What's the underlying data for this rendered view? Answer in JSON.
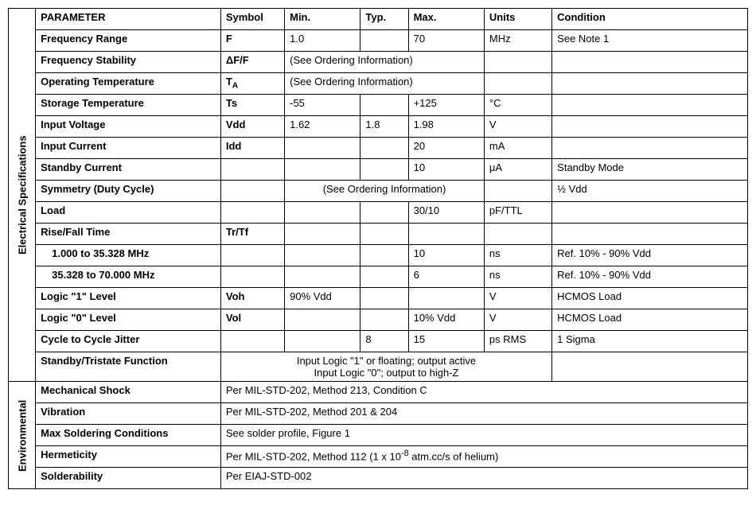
{
  "headers": {
    "parameter": "PARAMETER",
    "symbol": "Symbol",
    "min": "Min.",
    "typ": "Typ.",
    "max": "Max.",
    "units": "Units",
    "condition": "Condition"
  },
  "sections": {
    "elec": "Electrical Specifications",
    "env": "Environmental"
  },
  "rows": {
    "freq_range": {
      "p": "Frequency Range",
      "s": "F",
      "min": "1.0",
      "typ": "",
      "max": "70",
      "u": "MHz",
      "c": "See Note 1"
    },
    "freq_stab": {
      "p": "Frequency Stability",
      "s": "ΔF/F",
      "span": "(See Ordering Information)",
      "u": "",
      "c": ""
    },
    "op_temp": {
      "p": "Operating Temperature",
      "s_html": "T<sub>A</sub>",
      "span": "(See Ordering Information)",
      "u": "",
      "c": ""
    },
    "stor_temp": {
      "p": "Storage Temperature",
      "s": "Ts",
      "min": "-55",
      "typ": "",
      "max": "+125",
      "u": "°C",
      "c": ""
    },
    "in_volt": {
      "p": "Input Voltage",
      "s": "Vdd",
      "min": "1.62",
      "typ": "1.8",
      "max": "1.98",
      "u": "V",
      "c": ""
    },
    "in_curr": {
      "p": "Input Current",
      "s": "Idd",
      "min": "",
      "typ": "",
      "max": "20",
      "u": "mA",
      "c": ""
    },
    "standby_curr": {
      "p": "Standby Current",
      "s": "",
      "min": "",
      "typ": "",
      "max": "10",
      "u": "μA",
      "c": "Standby Mode"
    },
    "symmetry": {
      "p": "Symmetry (Duty Cycle)",
      "s": "",
      "span": "(See Ordering Information)",
      "u": "",
      "c": "½ Vdd"
    },
    "load": {
      "p": "Load",
      "s": "",
      "min": "",
      "typ": "",
      "max": "30/10",
      "u": "pF/TTL",
      "c": ""
    },
    "rise_fall": {
      "p": "Rise/Fall Time",
      "s": "Tr/Tf",
      "min": "",
      "typ": "",
      "max": "",
      "u": "",
      "c": ""
    },
    "rise_a": {
      "p": "1.000 to 35.328 MHz",
      "s": "",
      "min": "",
      "typ": "",
      "max": "10",
      "u": "ns",
      "c": "Ref. 10% - 90% Vdd"
    },
    "rise_b": {
      "p": "35.328 to 70.000 MHz",
      "s": "",
      "min": "",
      "typ": "",
      "max": "6",
      "u": "ns",
      "c": "Ref. 10% - 90% Vdd"
    },
    "logic1": {
      "p": "Logic \"1\" Level",
      "s": "Voh",
      "min": "90% Vdd",
      "typ": "",
      "max": "",
      "u": "V",
      "c": "HCMOS Load"
    },
    "logic0": {
      "p": "Logic \"0\" Level",
      "s": "Vol",
      "min": "",
      "typ": "",
      "max": "10% Vdd",
      "u": "V",
      "c": "HCMOS Load"
    },
    "jitter": {
      "p": "Cycle to Cycle Jitter",
      "s": "",
      "min": "",
      "typ": "8",
      "max": "15",
      "u": "ps RMS",
      "c": "1 Sigma"
    },
    "standby_fn": {
      "p": "Standby/Tristate Function",
      "span_line1": "Input Logic \"1\" or floating; output active",
      "span_line2": "Input Logic \"0\"; output to high-Z",
      "c": ""
    },
    "mech_shock": {
      "p": "Mechanical Shock",
      "span": "Per MIL-STD-202, Method 213, Condition C"
    },
    "vibration": {
      "p": "Vibration",
      "span": "Per MIL-STD-202, Method 201 & 204"
    },
    "max_solder": {
      "p": "Max Soldering Conditions",
      "span": "See solder profile, Figure 1"
    },
    "hermeticity": {
      "p": "Hermeticity",
      "span_html": "Per MIL-STD-202, Method 112 (1 x 10<sup>-8</sup> atm.cc/s of helium)"
    },
    "solderability": {
      "p": "Solderability",
      "span": "Per EIAJ-STD-002"
    }
  },
  "style": {
    "border_color": "#000000",
    "background": "#ffffff",
    "font_size_pt": 10,
    "font_family": "Arial"
  }
}
